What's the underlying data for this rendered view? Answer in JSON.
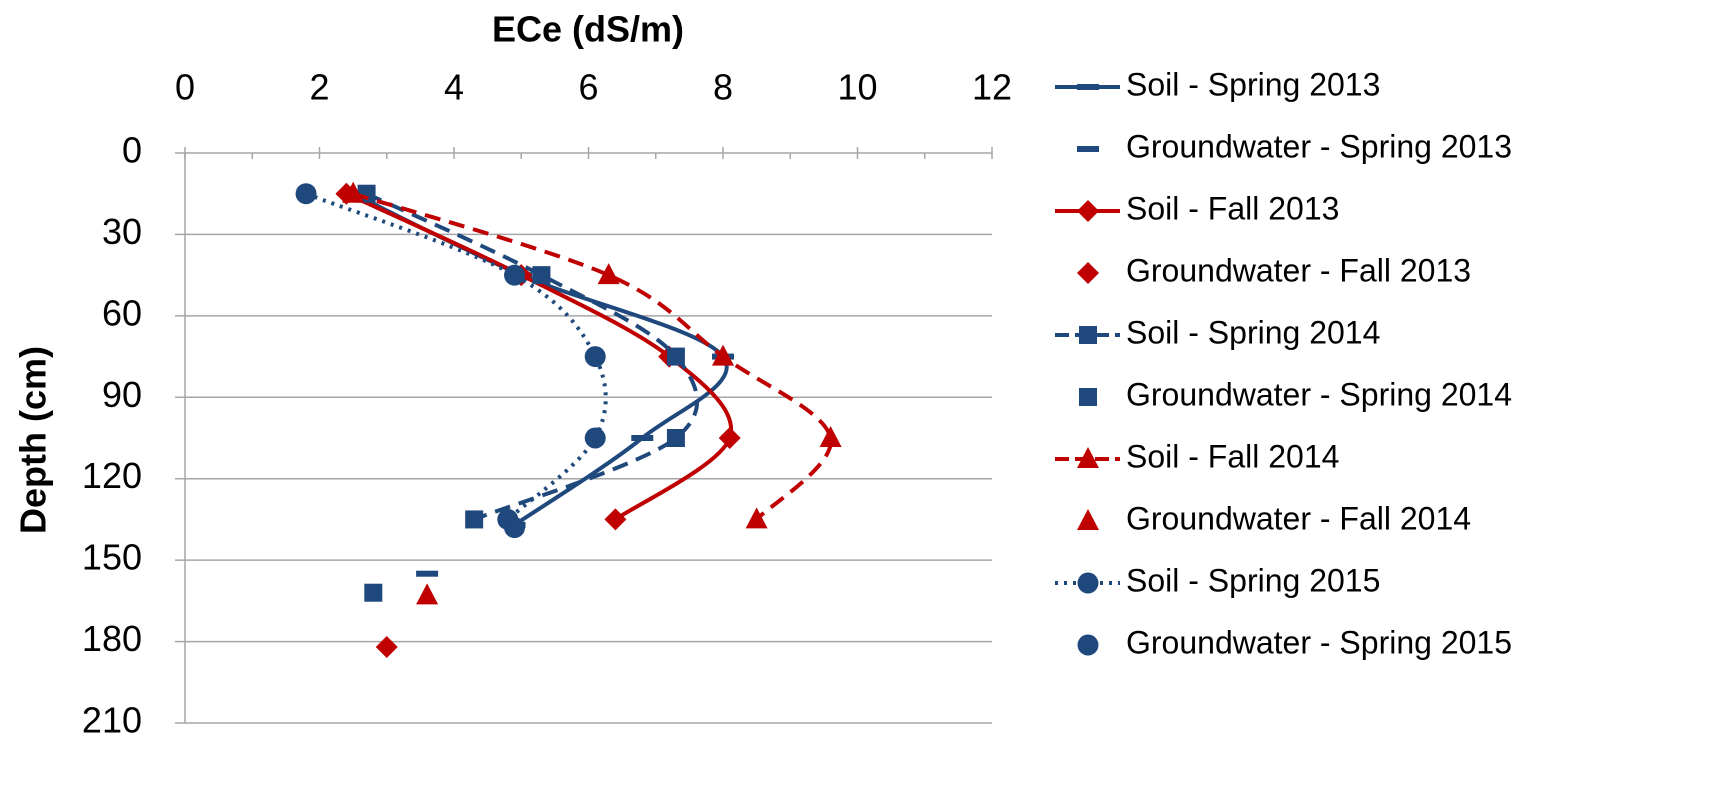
{
  "chart_data": {
    "type": "line",
    "title": "ECe (dS/m)",
    "y_label": "Depth (cm)",
    "xlim": [
      0,
      12
    ],
    "xticks": [
      0,
      2,
      4,
      6,
      8,
      10,
      12
    ],
    "xminorticks": [
      1,
      3,
      5,
      7,
      9,
      11
    ],
    "ylim": [
      0,
      210
    ],
    "yticks": [
      0,
      30,
      60,
      90,
      120,
      150,
      180,
      210
    ],
    "y_inverted": true,
    "x_axis_position": "top",
    "grid": true,
    "smooth": true,
    "legend": "right",
    "series": [
      {
        "name": "Soil - Spring 2013",
        "color": "#1f497d",
        "line": "solid",
        "marker": "dash",
        "x": [
          2.5,
          5.0,
          8.0,
          6.8,
          4.9
        ],
        "y": [
          15,
          45,
          75,
          105,
          137
        ]
      },
      {
        "name": "Groundwater - Spring 2013",
        "color": "#1f497d",
        "line": "none",
        "marker": "dash",
        "x": [
          3.6
        ],
        "y": [
          155
        ]
      },
      {
        "name": "Soil - Fall 2013",
        "color": "#c00000",
        "line": "solid",
        "marker": "diamond",
        "x": [
          2.4,
          5.0,
          7.2,
          8.1,
          6.4
        ],
        "y": [
          15,
          45,
          75,
          105,
          135
        ]
      },
      {
        "name": "Groundwater - Fall 2013",
        "color": "#c00000",
        "line": "none",
        "marker": "diamond",
        "x": [
          3.0
        ],
        "y": [
          182
        ]
      },
      {
        "name": "Soil - Spring 2014",
        "color": "#1f497d",
        "line": "dashed",
        "marker": "square",
        "x": [
          2.7,
          5.3,
          7.3,
          7.3,
          4.3
        ],
        "y": [
          15,
          45,
          75,
          105,
          135
        ]
      },
      {
        "name": "Groundwater - Spring 2014",
        "color": "#1f497d",
        "line": "none",
        "marker": "square",
        "x": [
          2.8
        ],
        "y": [
          162
        ]
      },
      {
        "name": "Soil - Fall 2014",
        "color": "#c00000",
        "line": "dashed",
        "marker": "triangle",
        "x": [
          2.5,
          6.3,
          8.0,
          9.6,
          8.5
        ],
        "y": [
          15,
          45,
          75,
          105,
          135
        ]
      },
      {
        "name": "Groundwater - Fall 2014",
        "color": "#c00000",
        "line": "none",
        "marker": "triangle",
        "x": [
          3.6
        ],
        "y": [
          163
        ]
      },
      {
        "name": "Soil - Spring 2015",
        "color": "#1f497d",
        "line": "dotted",
        "marker": "circle",
        "x": [
          1.8,
          4.9,
          6.1,
          6.1,
          4.8
        ],
        "y": [
          15,
          45,
          75,
          105,
          135
        ]
      },
      {
        "name": "Groundwater - Spring 2015",
        "color": "#1f497d",
        "line": "none",
        "marker": "circle",
        "x": [
          4.9
        ],
        "y": [
          138
        ]
      }
    ]
  }
}
